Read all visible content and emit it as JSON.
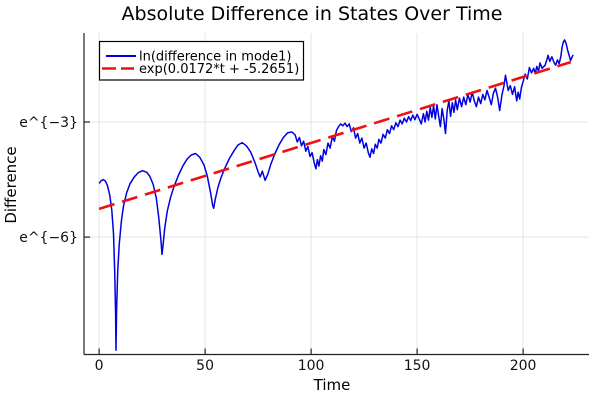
{
  "page": {
    "background": "#ffffff"
  },
  "chart_data": {
    "type": "line",
    "title": "Absolute Difference in States Over Time",
    "xlabel": "Time",
    "ylabel": "Difference",
    "x_axis": {
      "lim": [
        -7.1,
        231.1
      ],
      "ticks": [
        {
          "v": 0,
          "label": "0"
        },
        {
          "v": 50,
          "label": "50"
        },
        {
          "v": 100,
          "label": "100"
        },
        {
          "v": 150,
          "label": "150"
        },
        {
          "v": 200,
          "label": "200"
        }
      ]
    },
    "y_axis": {
      "scale": "log-natural",
      "lim_ln": [
        -9.06,
        -0.68
      ],
      "ticks": [
        {
          "v": -3,
          "label": "e^{−3}"
        },
        {
          "v": -6,
          "label": "e^{−6}"
        }
      ]
    },
    "grid": {
      "show": true,
      "color": "#e4e4e4"
    },
    "axis_color": "#222222",
    "text_color": "#000000",
    "legend": {
      "position": "top-left",
      "border_color": "#000000",
      "background": "#ffffff"
    },
    "series": [
      {
        "name": "ln(difference in mode1)",
        "color": "#0101e0",
        "style": "solid",
        "width": 1.5,
        "points": [
          [
            0,
            -4.6
          ],
          [
            1,
            -4.53
          ],
          [
            2,
            -4.5
          ],
          [
            3,
            -4.54
          ],
          [
            4,
            -4.66
          ],
          [
            5,
            -4.9
          ],
          [
            6,
            -5.3
          ],
          [
            6.8,
            -5.9
          ],
          [
            7.4,
            -6.9
          ],
          [
            7.8,
            -8.0
          ],
          [
            8,
            -8.95
          ],
          [
            8.3,
            -7.9
          ],
          [
            8.8,
            -6.9
          ],
          [
            9.5,
            -6.2
          ],
          [
            10.5,
            -5.6
          ],
          [
            11.5,
            -5.2
          ],
          [
            13,
            -4.85
          ],
          [
            14.5,
            -4.62
          ],
          [
            16.5,
            -4.44
          ],
          [
            18.5,
            -4.32
          ],
          [
            20.5,
            -4.27
          ],
          [
            22.5,
            -4.31
          ],
          [
            24,
            -4.42
          ],
          [
            25.5,
            -4.62
          ],
          [
            27,
            -4.98
          ],
          [
            28.2,
            -5.5
          ],
          [
            29.2,
            -6.1
          ],
          [
            29.7,
            -6.45
          ],
          [
            30.2,
            -6.2
          ],
          [
            31,
            -5.75
          ],
          [
            32.2,
            -5.32
          ],
          [
            33.8,
            -4.95
          ],
          [
            35.5,
            -4.66
          ],
          [
            37.5,
            -4.38
          ],
          [
            39.5,
            -4.15
          ],
          [
            41.5,
            -3.97
          ],
          [
            43.5,
            -3.86
          ],
          [
            45.5,
            -3.82
          ],
          [
            47.5,
            -3.92
          ],
          [
            49.5,
            -4.12
          ],
          [
            51,
            -4.4
          ],
          [
            52.5,
            -4.82
          ],
          [
            53.6,
            -5.18
          ],
          [
            54.1,
            -5.25
          ],
          [
            54.8,
            -5.02
          ],
          [
            56,
            -4.72
          ],
          [
            57.5,
            -4.45
          ],
          [
            59.5,
            -4.18
          ],
          [
            61.5,
            -3.95
          ],
          [
            63.5,
            -3.76
          ],
          [
            65.5,
            -3.6
          ],
          [
            67.5,
            -3.54
          ],
          [
            69.5,
            -3.62
          ],
          [
            71.5,
            -3.78
          ],
          [
            73.5,
            -4.05
          ],
          [
            75,
            -4.3
          ],
          [
            76,
            -4.43
          ],
          [
            77,
            -4.28
          ],
          [
            78.3,
            -4.52
          ],
          [
            79.6,
            -4.36
          ],
          [
            81,
            -4.1
          ],
          [
            83,
            -3.82
          ],
          [
            85,
            -3.58
          ],
          [
            87,
            -3.4
          ],
          [
            89,
            -3.28
          ],
          [
            91,
            -3.26
          ],
          [
            92.5,
            -3.34
          ],
          [
            93.5,
            -3.52
          ],
          [
            94.5,
            -3.4
          ],
          [
            95.5,
            -3.62
          ],
          [
            96.5,
            -3.5
          ],
          [
            97.5,
            -3.76
          ],
          [
            98.5,
            -3.64
          ],
          [
            99.5,
            -3.9
          ],
          [
            100.5,
            -3.8
          ],
          [
            101.5,
            -4.06
          ],
          [
            102.3,
            -4.22
          ],
          [
            103,
            -3.98
          ],
          [
            103.7,
            -4.15
          ],
          [
            104.5,
            -3.88
          ],
          [
            105.3,
            -4.02
          ],
          [
            106,
            -3.72
          ],
          [
            107,
            -3.85
          ],
          [
            108,
            -3.55
          ],
          [
            109,
            -3.68
          ],
          [
            110,
            -3.38
          ],
          [
            111,
            -3.5
          ],
          [
            112,
            -3.22
          ],
          [
            113,
            -3.12
          ],
          [
            114,
            -3.05
          ],
          [
            115,
            -3.1
          ],
          [
            116,
            -3.03
          ],
          [
            117,
            -3.12
          ],
          [
            118,
            -3.05
          ],
          [
            119,
            -3.25
          ],
          [
            120,
            -3.15
          ],
          [
            121,
            -3.42
          ],
          [
            122,
            -3.3
          ],
          [
            123,
            -3.55
          ],
          [
            124,
            -3.42
          ],
          [
            125,
            -3.68
          ],
          [
            126,
            -3.55
          ],
          [
            127,
            -3.8
          ],
          [
            127.8,
            -3.92
          ],
          [
            128.6,
            -3.7
          ],
          [
            129.5,
            -3.82
          ],
          [
            130.3,
            -3.58
          ],
          [
            131.2,
            -3.68
          ],
          [
            132,
            -3.45
          ],
          [
            133,
            -3.55
          ],
          [
            134,
            -3.32
          ],
          [
            135,
            -3.42
          ],
          [
            136,
            -3.2
          ],
          [
            137,
            -3.3
          ],
          [
            138,
            -3.1
          ],
          [
            139,
            -3.2
          ],
          [
            140,
            -3.02
          ],
          [
            141,
            -3.12
          ],
          [
            142,
            -2.95
          ],
          [
            143,
            -3.05
          ],
          [
            144,
            -2.9
          ],
          [
            145,
            -3.0
          ],
          [
            146,
            -2.86
          ],
          [
            147,
            -2.96
          ],
          [
            148,
            -2.82
          ],
          [
            149,
            -2.94
          ],
          [
            150,
            -2.8
          ],
          [
            151,
            -2.92
          ],
          [
            152,
            -3.05
          ],
          [
            153,
            -2.78
          ],
          [
            153.8,
            -3.0
          ],
          [
            154.6,
            -2.72
          ],
          [
            155.4,
            -2.95
          ],
          [
            156.2,
            -2.62
          ],
          [
            157,
            -2.88
          ],
          [
            157.8,
            -2.58
          ],
          [
            158.6,
            -2.92
          ],
          [
            159.4,
            -2.55
          ],
          [
            160.2,
            -2.85
          ],
          [
            161,
            -3.12
          ],
          [
            161.8,
            -2.65
          ],
          [
            162.6,
            -2.92
          ],
          [
            163.4,
            -3.3
          ],
          [
            164.2,
            -2.7
          ],
          [
            165,
            -2.45
          ],
          [
            165.8,
            -2.85
          ],
          [
            166.6,
            -2.5
          ],
          [
            167.4,
            -2.75
          ],
          [
            168.2,
            -2.42
          ],
          [
            169,
            -2.68
          ],
          [
            170,
            -2.38
          ],
          [
            171,
            -2.6
          ],
          [
            172,
            -2.35
          ],
          [
            173,
            -2.55
          ],
          [
            174,
            -2.28
          ],
          [
            175,
            -2.48
          ],
          [
            176,
            -2.22
          ],
          [
            177,
            -2.45
          ],
          [
            178,
            -2.6
          ],
          [
            179,
            -2.35
          ],
          [
            180,
            -2.52
          ],
          [
            181,
            -2.28
          ],
          [
            182,
            -2.42
          ],
          [
            183,
            -2.18
          ],
          [
            184,
            -2.35
          ],
          [
            185,
            -2.55
          ],
          [
            186,
            -2.25
          ],
          [
            187,
            -2.12
          ],
          [
            188,
            -2.35
          ],
          [
            189,
            -2.7
          ],
          [
            190,
            -2.3
          ],
          [
            191,
            -2.05
          ],
          [
            191.7,
            -1.78
          ],
          [
            192.4,
            -2.0
          ],
          [
            193,
            -2.18
          ],
          [
            194,
            -2.05
          ],
          [
            195,
            -2.28
          ],
          [
            196,
            -2.08
          ],
          [
            197,
            -2.45
          ],
          [
            197.7,
            -2.22
          ],
          [
            198.4,
            -2.4
          ],
          [
            199.2,
            -2.1
          ],
          [
            200,
            -1.95
          ],
          [
            201,
            -1.75
          ],
          [
            202,
            -1.88
          ],
          [
            203,
            -1.58
          ],
          [
            204,
            -1.72
          ],
          [
            205,
            -1.6
          ],
          [
            205.7,
            -1.74
          ],
          [
            206.5,
            -1.55
          ],
          [
            207.3,
            -1.68
          ],
          [
            208,
            -1.46
          ],
          [
            209,
            -1.6
          ],
          [
            210.4,
            -1.52
          ],
          [
            211.2,
            -1.38
          ],
          [
            211.8,
            -1.26
          ],
          [
            212.6,
            -1.42
          ],
          [
            213.6,
            -1.3
          ],
          [
            214.6,
            -1.45
          ],
          [
            215.4,
            -1.52
          ],
          [
            216.2,
            -1.38
          ],
          [
            217,
            -1.48
          ],
          [
            217.8,
            -1.3
          ],
          [
            218.4,
            -1.05
          ],
          [
            219,
            -0.92
          ],
          [
            219.6,
            -0.86
          ],
          [
            220.3,
            -0.95
          ],
          [
            221,
            -1.12
          ],
          [
            221.8,
            -1.28
          ],
          [
            222.4,
            -1.4
          ],
          [
            223,
            -1.32
          ],
          [
            223.6,
            -1.25
          ]
        ]
      },
      {
        "name": "exp(0.0172*t + -5.2651)",
        "color": "#f01010",
        "style": "dashed",
        "width": 2.6,
        "slope": 0.0172,
        "intercept": -5.2651,
        "t_range": [
          0,
          222.5
        ]
      }
    ]
  }
}
